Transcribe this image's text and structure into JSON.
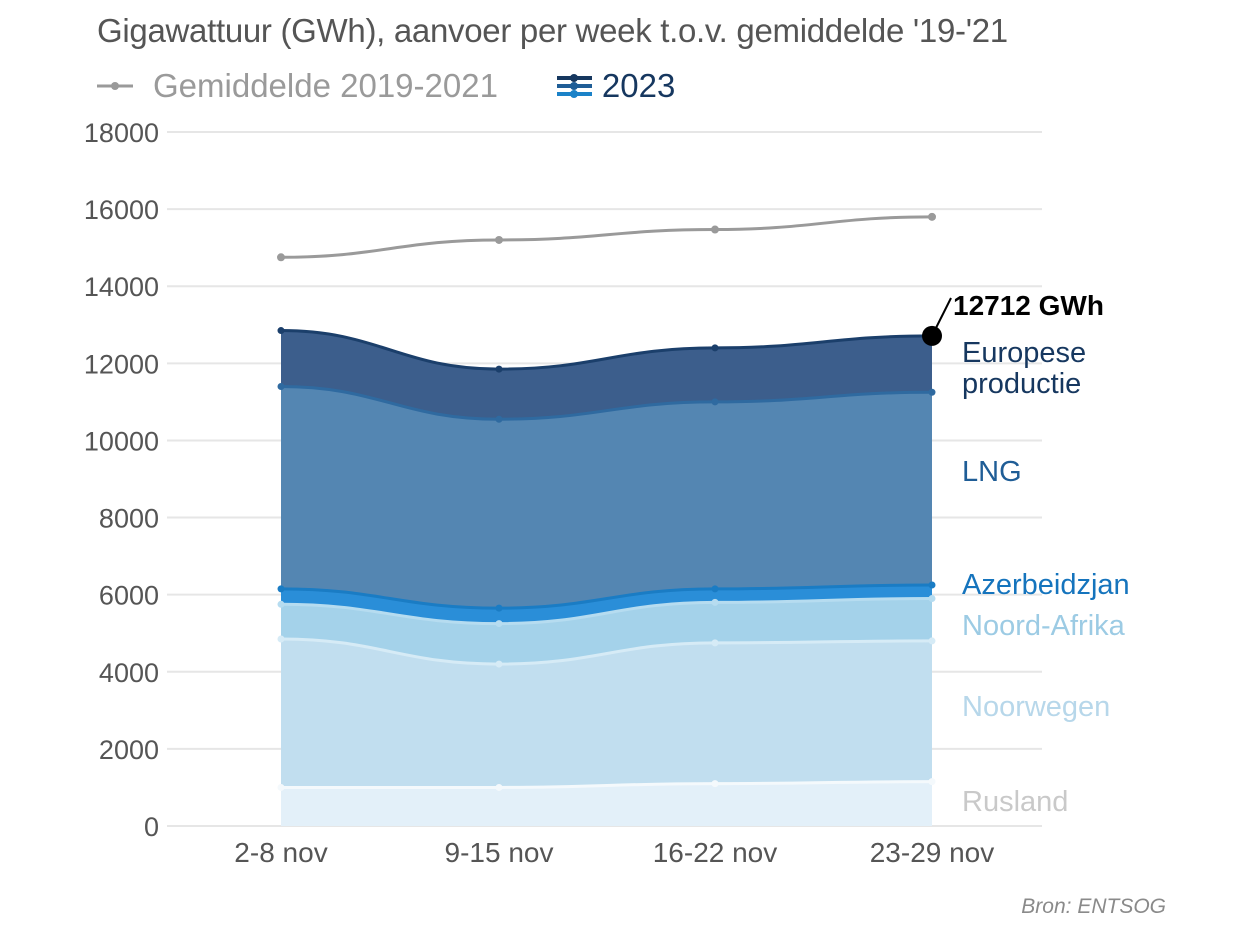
{
  "header": {
    "title": "Gigawattuur (GWh), aanvoer per week t.o.v. gemiddelde '19-'21"
  },
  "legend": [
    {
      "label": "Gemiddelde 2019-2021",
      "color": "#9a9a9a",
      "icon": "gray-line-marker-icon"
    },
    {
      "label": "2023",
      "color": "#16375f",
      "icon": "stacked-lines-icon"
    }
  ],
  "colors": {
    "rusland": "#e3f0f9",
    "noorwegen": "#c1deef",
    "noord_afrika": "#a4d2ea",
    "azerbeidzjan": "#2a8ed8",
    "lng": "#5486b2",
    "europese_productie": "#3c5e8c",
    "average_line": "#9a9a9a",
    "grid": "#e6e6e6"
  },
  "chart_data": {
    "type": "area",
    "stacked": true,
    "categories": [
      "2-8 nov",
      "9-15 nov",
      "16-22 nov",
      "23-29 nov"
    ],
    "ylim": [
      0,
      18000
    ],
    "yticks": [
      0,
      2000,
      4000,
      6000,
      8000,
      10000,
      12000,
      14000,
      16000,
      18000
    ],
    "grid": true,
    "series": [
      {
        "name": "Rusland",
        "key": "rusland",
        "values": [
          1000,
          1000,
          1100,
          1150
        ]
      },
      {
        "name": "Noorwegen",
        "key": "noorwegen",
        "values": [
          3850,
          3200,
          3650,
          3650
        ]
      },
      {
        "name": "Noord-Afrika",
        "key": "noord_afrika",
        "values": [
          900,
          1050,
          1050,
          1100
        ]
      },
      {
        "name": "Azerbeidzjan",
        "key": "azerbeidzjan",
        "values": [
          400,
          400,
          350,
          350
        ]
      },
      {
        "name": "LNG",
        "key": "lng",
        "values": [
          5250,
          4900,
          4850,
          5000
        ]
      },
      {
        "name": "Europese productie",
        "name_lines": [
          "Europese",
          "productie"
        ],
        "key": "europese_productie",
        "values": [
          1450,
          1300,
          1400,
          1462
        ]
      }
    ],
    "average": {
      "name": "Gemiddelde 2019-2021",
      "values": [
        14750,
        15200,
        15470,
        15800
      ]
    },
    "annotation": {
      "text": "12712 GWh",
      "value": 12712,
      "category": "23-29 nov"
    }
  },
  "source": "Bron: ENTSOG"
}
